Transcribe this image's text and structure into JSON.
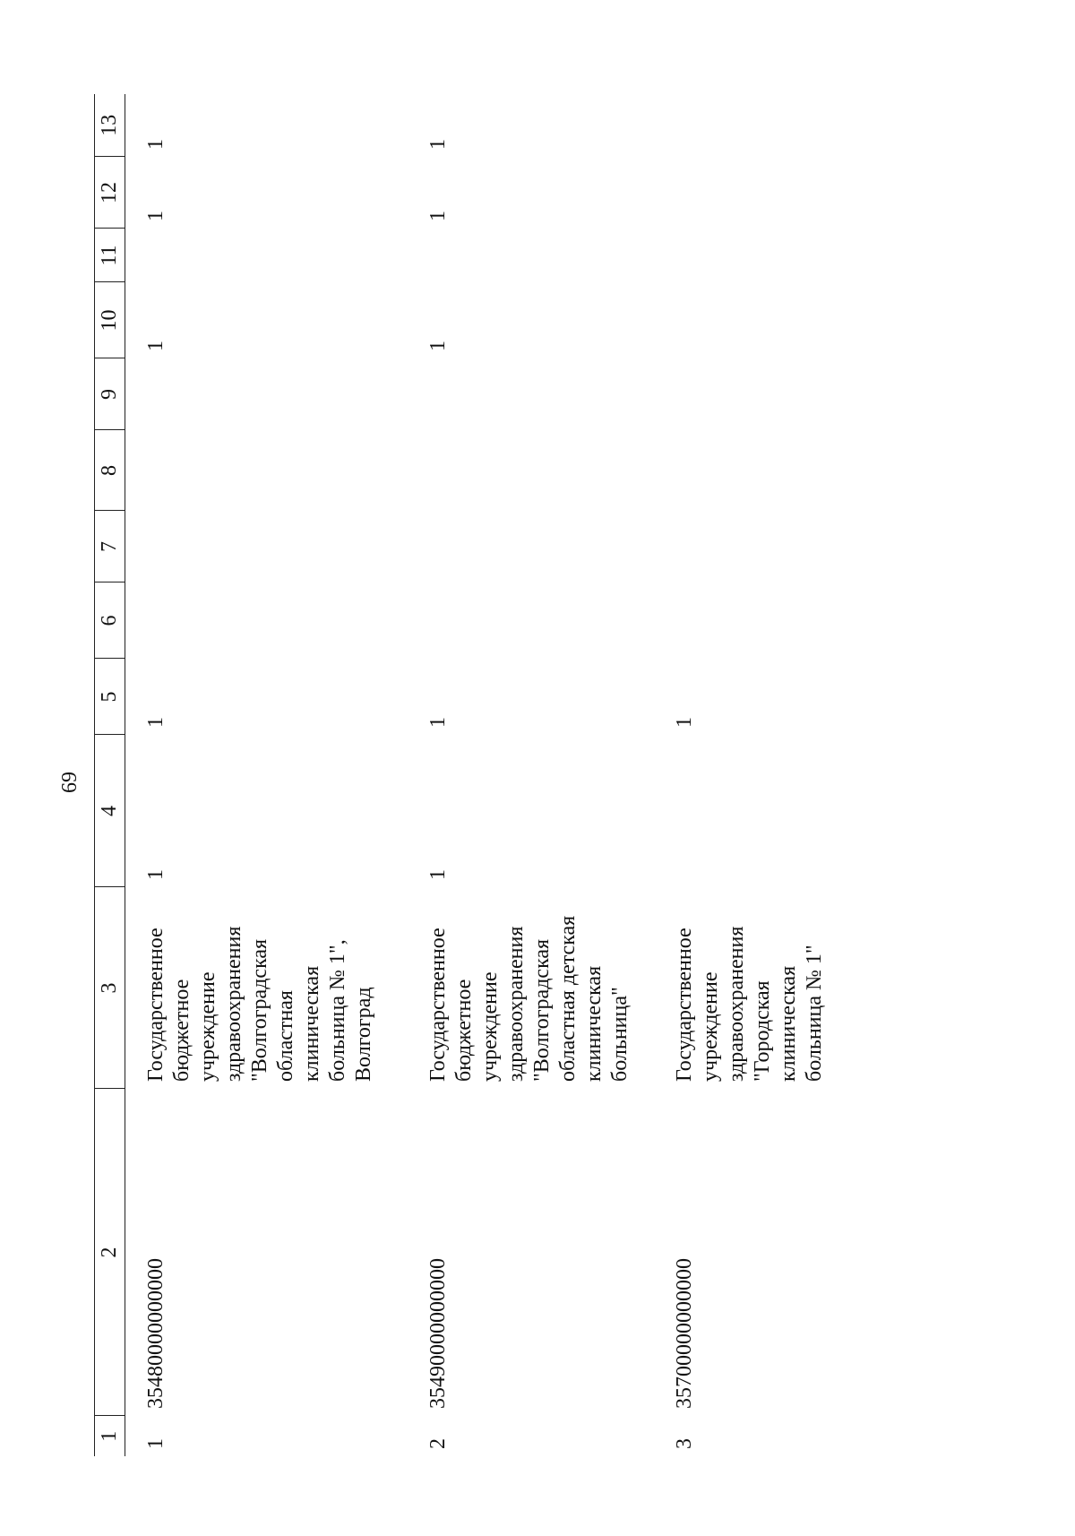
{
  "page_number": "69",
  "table": {
    "header": [
      "1",
      "2",
      "3",
      "4",
      "5",
      "6",
      "7",
      "8",
      "9",
      "10",
      "11",
      "12",
      "13"
    ],
    "rows": [
      [
        "1",
        "35480000000000",
        "Государственное бюджетное учреждение здравоохранения \"Волгоградская областная клиническая больница № 1\", Волгоград",
        "1",
        "1",
        null,
        null,
        null,
        null,
        "1",
        null,
        "1",
        "1"
      ],
      [
        "2",
        "35490000000000",
        "Государственное бюджетное учреждение здравоохранения \"Волгоградская областная детская клиническая больница\"",
        "1",
        "1",
        null,
        null,
        null,
        null,
        "1",
        null,
        "1",
        "1"
      ],
      [
        "3",
        "35700000000000",
        "Государственное учреждение здравоохранения \"Городская клиническая больница № 1\"",
        null,
        "1",
        null,
        null,
        null,
        null,
        null,
        null,
        null,
        null
      ]
    ]
  }
}
